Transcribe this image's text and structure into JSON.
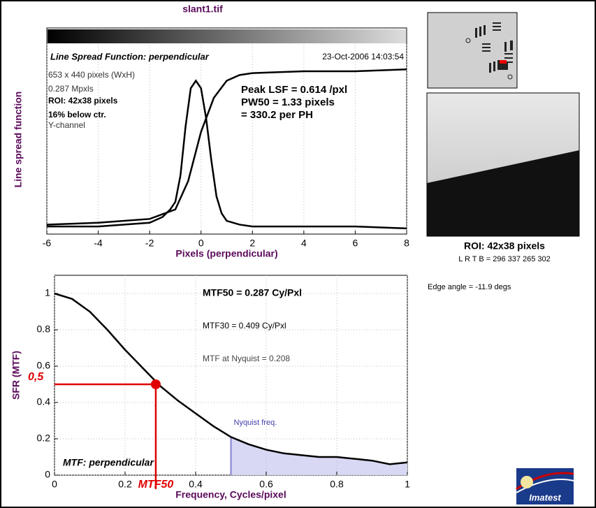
{
  "title": "slant1.tif",
  "right_panel": {
    "roi_title": "ROI: 42x38 pixels",
    "roi_coords": "L R  T B = 296 337  265 302",
    "edge_angle": "Edge angle = -11.9 degs"
  },
  "logo": "Imatest",
  "chart_data": [
    {
      "type": "line",
      "title": "Line Spread Function: perpendicular",
      "timestamp": "23-Oct-2006 14:03:54",
      "info": [
        "653 x 440 pixels (WxH)",
        "0.287 Mpxls",
        "ROI: 42x38 pixels",
        "16% below ctr.",
        "Y-channel"
      ],
      "annotations": [
        "Peak LSF = 0.614 /pxl",
        "PW50 = 1.33 pixels",
        "= 330.2 per PH"
      ],
      "x_label": "Pixels (perpendicular)",
      "y_label": "Line spread function",
      "xlim": [
        -6,
        8
      ],
      "ylim": [
        0,
        1
      ],
      "xticks": [
        -6,
        -4,
        -2,
        0,
        2,
        4,
        6,
        8
      ],
      "grid": true,
      "series": [
        {
          "color": "#000000",
          "x": [
            -6,
            -4,
            -2,
            -1.5,
            -1.2,
            -1,
            -0.8,
            -0.6,
            -0.4,
            -0.2,
            0,
            0.2,
            0.4,
            0.6,
            0.8,
            1,
            1.5,
            2,
            4,
            6,
            8
          ],
          "values": [
            0.04,
            0.04,
            0.06,
            0.09,
            0.13,
            0.17,
            0.31,
            0.57,
            0.77,
            0.81,
            0.77,
            0.61,
            0.39,
            0.2,
            0.11,
            0.07,
            0.05,
            0.04,
            0.04,
            0.04,
            0.03
          ]
        },
        {
          "color": "#000000",
          "x": [
            -6,
            -4,
            -2,
            -1,
            -0.5,
            0,
            0.5,
            1,
            1.5,
            2,
            4,
            6,
            8
          ],
          "values": [
            0.05,
            0.06,
            0.08,
            0.13,
            0.28,
            0.54,
            0.72,
            0.81,
            0.84,
            0.85,
            0.86,
            0.86,
            0.87
          ]
        }
      ]
    },
    {
      "type": "line",
      "title": "MTF: perpendicular",
      "annotations": [
        "MTF50 = 0.287 Cy/Pxl",
        "MTF30 = 0.409 Cy/Pxl",
        "MTF at Nyquist = 0.208"
      ],
      "x_label": "Frequency, Cycles/pixel",
      "y_label": "SFR (MTF)",
      "xlim": [
        0,
        1
      ],
      "ylim": [
        0,
        1.1
      ],
      "xticks": [
        0,
        0.2,
        0.4,
        0.6,
        0.8,
        1
      ],
      "yticks": [
        0,
        0.2,
        0.4,
        0.6,
        0.8,
        1
      ],
      "grid": true,
      "nyquist": 0.5,
      "nyquist_label": "Nyquist freq.",
      "nyquist_color": "#d8d8f4",
      "marker": {
        "x": 0.287,
        "y": 0.5,
        "x_label": "MTF50",
        "y_label": "0,5",
        "color": "#e00000"
      },
      "series": [
        {
          "color": "#000000",
          "x": [
            0,
            0.05,
            0.1,
            0.15,
            0.2,
            0.25,
            0.3,
            0.35,
            0.4,
            0.45,
            0.5,
            0.55,
            0.6,
            0.65,
            0.7,
            0.75,
            0.8,
            0.85,
            0.9,
            0.95,
            1
          ],
          "values": [
            1,
            0.97,
            0.9,
            0.8,
            0.69,
            0.59,
            0.49,
            0.41,
            0.34,
            0.27,
            0.21,
            0.17,
            0.14,
            0.12,
            0.11,
            0.1,
            0.1,
            0.09,
            0.08,
            0.06,
            0.07
          ]
        }
      ]
    }
  ]
}
